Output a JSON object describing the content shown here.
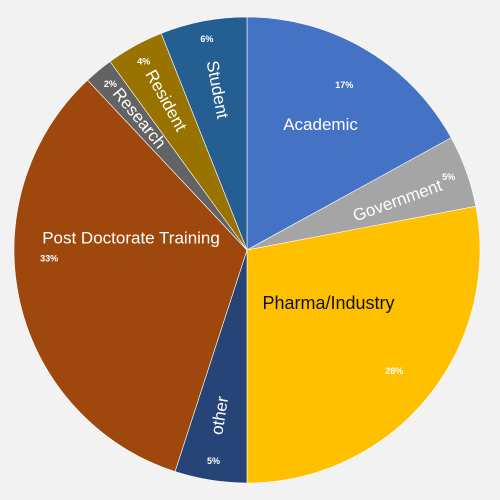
{
  "chart_data": {
    "type": "pie",
    "start_angle_deg": 0,
    "direction": "clockwise",
    "slices": [
      {
        "label": "Academic",
        "value": 17,
        "pct_label": "17%",
        "color": "#4472c4"
      },
      {
        "label": "Government",
        "value": 5,
        "pct_label": "5%",
        "color": "#a5a5a5"
      },
      {
        "label": "Pharma/Industry",
        "value": 28,
        "pct_label": "28%",
        "color": "#ffc000"
      },
      {
        "label": "other",
        "value": 5,
        "pct_label": "5%",
        "color": "#264478"
      },
      {
        "label": "Post Doctorate Training",
        "value": 33,
        "pct_label": "33%",
        "color": "#9e480e"
      },
      {
        "label": "Research",
        "value": 2,
        "pct_label": "2%",
        "color": "#636363"
      },
      {
        "label": "Resident",
        "value": 4,
        "pct_label": "4%",
        "color": "#997300"
      },
      {
        "label": "Student",
        "value": 6,
        "pct_label": "6%",
        "color": "#255e91"
      }
    ]
  }
}
